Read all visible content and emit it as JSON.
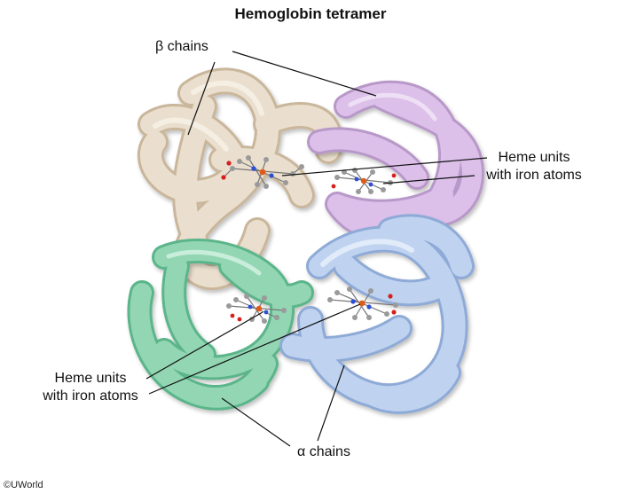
{
  "title": "Hemoglobin tetramer",
  "labels": {
    "beta_chains": "β chains",
    "heme_right_line1": "Heme units",
    "heme_right_line2": "with iron atoms",
    "heme_left_line1": "Heme units",
    "heme_left_line2": "with iron atoms",
    "alpha_chains": "α chains"
  },
  "copyright": "©UWorld",
  "colors": {
    "beta_chain_1": "#e8dac6",
    "beta_chain_2": "#d8b9e6",
    "alpha_chain_1": "#8fd3b1",
    "alpha_chain_2": "#b9cfef",
    "iron": "#e05a1a",
    "carbon": "#9a9a9a",
    "nitrogen": "#2d4fd6",
    "oxygen": "#d62020"
  }
}
